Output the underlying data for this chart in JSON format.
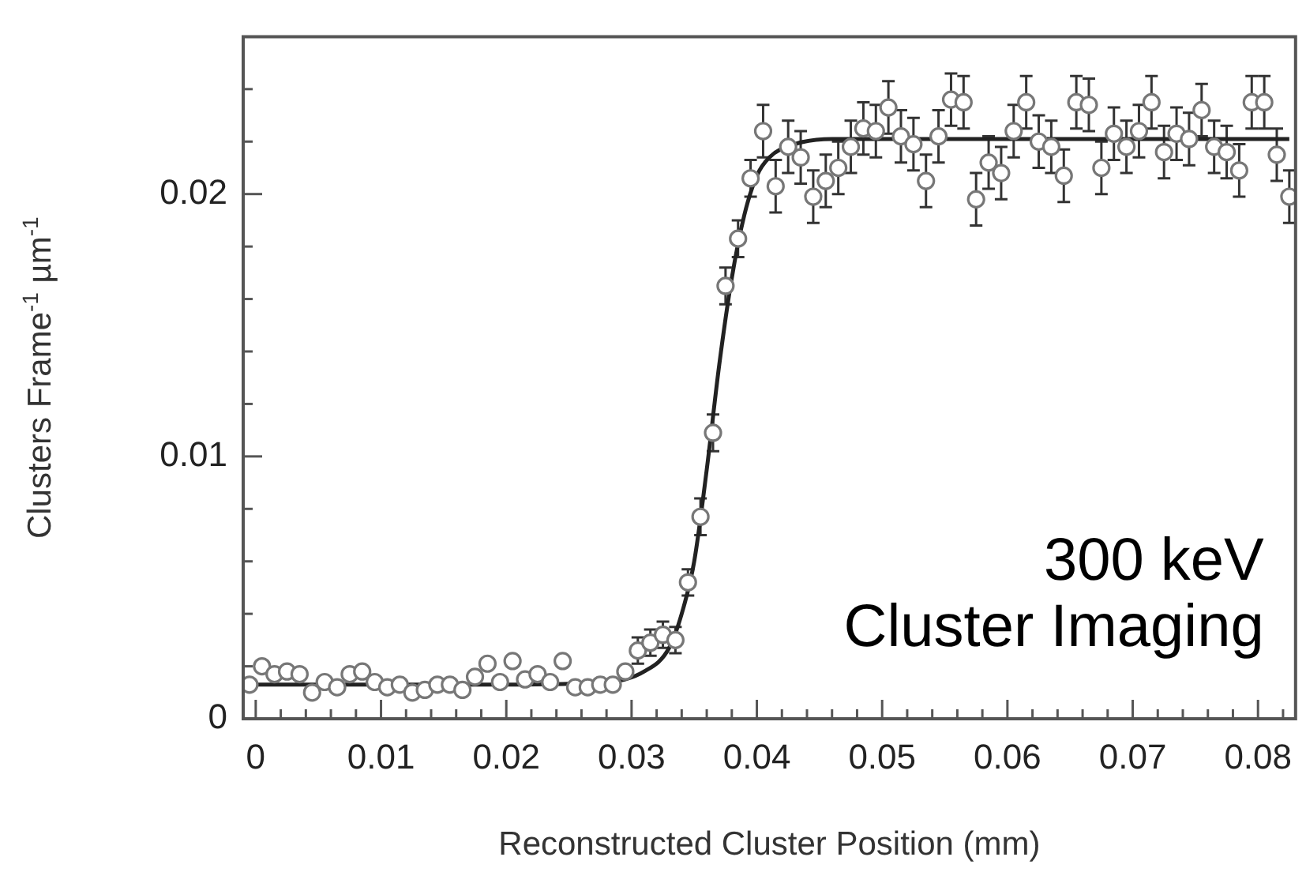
{
  "chart_data": {
    "type": "scatter",
    "xlabel": "Reconstructed Cluster Position (mm)",
    "ylabel": "Clusters Frame$^{-1}$ µm$^{-1}$",
    "annotations": [
      "300 keV",
      "Cluster Imaging"
    ],
    "xlim": [
      -0.001,
      0.083
    ],
    "ylim": [
      0,
      0.026
    ],
    "xticks": [
      0,
      {
        "value": 0.002,
        "label": null
      },
      {
        "value": 0.004,
        "label": null
      },
      {
        "value": 0.006,
        "label": null
      },
      {
        "value": 0.008,
        "label": null
      },
      0.01,
      {
        "value": 0.012,
        "label": null
      },
      {
        "value": 0.014,
        "label": null
      },
      {
        "value": 0.016,
        "label": null
      },
      {
        "value": 0.018,
        "label": null
      },
      0.02,
      {
        "value": 0.022,
        "label": null
      },
      {
        "value": 0.024,
        "label": null
      },
      {
        "value": 0.026,
        "label": null
      },
      {
        "value": 0.028,
        "label": null
      },
      0.03,
      {
        "value": 0.032,
        "label": null
      },
      {
        "value": 0.034,
        "label": null
      },
      {
        "value": 0.036,
        "label": null
      },
      {
        "value": 0.038,
        "label": null
      },
      0.04,
      {
        "value": 0.042,
        "label": null
      },
      {
        "value": 0.044,
        "label": null
      },
      {
        "value": 0.046,
        "label": null
      },
      {
        "value": 0.048,
        "label": null
      },
      0.05,
      {
        "value": 0.052,
        "label": null
      },
      {
        "value": 0.054,
        "label": null
      },
      {
        "value": 0.056,
        "label": null
      },
      {
        "value": 0.058,
        "label": null
      },
      0.06,
      {
        "value": 0.062,
        "label": null
      },
      {
        "value": 0.064,
        "label": null
      },
      {
        "value": 0.066,
        "label": null
      },
      {
        "value": 0.068,
        "label": null
      },
      0.07,
      {
        "value": 0.072,
        "label": null
      },
      {
        "value": 0.074,
        "label": null
      },
      {
        "value": 0.076,
        "label": null
      },
      {
        "value": 0.078,
        "label": null
      },
      0.08,
      {
        "value": 0.082,
        "label": null
      }
    ],
    "yticks": [
      0,
      {
        "value": 0.002,
        "label": null
      },
      {
        "value": 0.004,
        "label": null
      },
      {
        "value": 0.006,
        "label": null
      },
      {
        "value": 0.008,
        "label": null
      },
      0.01,
      {
        "value": 0.012,
        "label": null
      },
      {
        "value": 0.014,
        "label": null
      },
      {
        "value": 0.016,
        "label": null
      },
      {
        "value": 0.018,
        "label": null
      },
      0.02,
      {
        "value": 0.022,
        "label": null
      },
      {
        "value": 0.024,
        "label": null
      }
    ],
    "grid": false,
    "legend": false,
    "marker": "circle",
    "series": [
      {
        "type": "scatter",
        "color": "#777777",
        "x": [
          -0.0005,
          0.0005,
          0.0015,
          0.0025,
          0.0035,
          0.0045,
          0.0055,
          0.0065,
          0.0075,
          0.0085,
          0.0095,
          0.0105,
          0.0115,
          0.0125,
          0.0135,
          0.0145,
          0.0155,
          0.0165,
          0.0175,
          0.0185,
          0.0195,
          0.0205,
          0.0215,
          0.0225,
          0.0235,
          0.0245,
          0.0255,
          0.0265,
          0.0275,
          0.0285,
          0.0295,
          0.0305,
          0.0315,
          0.0325,
          0.0335,
          0.0345,
          0.0355,
          0.0365,
          0.0375,
          0.0385,
          0.0395,
          0.0405,
          0.0415,
          0.0425,
          0.0435,
          0.0445,
          0.0455,
          0.0465,
          0.0475,
          0.0485,
          0.0495,
          0.0505,
          0.0515,
          0.0525,
          0.0535,
          0.0545,
          0.0555,
          0.0565,
          0.0575,
          0.0585,
          0.0595,
          0.0605,
          0.0615,
          0.0625,
          0.0635,
          0.0645,
          0.0655,
          0.0665,
          0.0675,
          0.0685,
          0.0695,
          0.0705,
          0.0715,
          0.0725,
          0.0735,
          0.0745,
          0.0755,
          0.0765,
          0.0775,
          0.0785,
          0.0795,
          0.0805,
          0.0815,
          0.0825
        ],
        "values": [
          0.0013,
          0.002,
          0.0017,
          0.0018,
          0.0017,
          0.001,
          0.0014,
          0.0012,
          0.0017,
          0.0018,
          0.0014,
          0.0012,
          0.0013,
          0.001,
          0.0011,
          0.0013,
          0.0013,
          0.0011,
          0.0016,
          0.0021,
          0.0014,
          0.0022,
          0.0015,
          0.0017,
          0.0014,
          0.0022,
          0.0012,
          0.0012,
          0.0013,
          0.0013,
          0.0018,
          0.0026,
          0.0029,
          0.0032,
          0.003,
          0.0052,
          0.0077,
          0.0109,
          0.0165,
          0.0183,
          0.0206,
          0.0224,
          0.0203,
          0.0218,
          0.0214,
          0.0199,
          0.0205,
          0.021,
          0.0218,
          0.0225,
          0.0224,
          0.0233,
          0.0222,
          0.0219,
          0.0205,
          0.0222,
          0.0236,
          0.0235,
          0.0198,
          0.0212,
          0.0208,
          0.0224,
          0.0235,
          0.022,
          0.0218,
          0.0207,
          0.0235,
          0.0234,
          0.021,
          0.0223,
          0.0218,
          0.0224,
          0.0235,
          0.0216,
          0.0223,
          0.0221,
          0.0232,
          0.0218,
          0.0216,
          0.0209,
          0.0235,
          0.0235,
          0.0215,
          0.0199
        ],
        "errors": [
          null,
          null,
          null,
          null,
          null,
          null,
          null,
          null,
          null,
          null,
          null,
          null,
          null,
          null,
          null,
          null,
          null,
          null,
          null,
          null,
          null,
          null,
          null,
          null,
          null,
          null,
          null,
          null,
          null,
          null,
          null,
          0.0005,
          0.0005,
          0.0005,
          0.0005,
          0.0005,
          0.0007,
          0.0007,
          0.0007,
          0.0007,
          0.0007,
          0.001,
          0.001,
          0.001,
          0.001,
          0.001,
          0.001,
          0.001,
          0.001,
          0.001,
          0.001,
          0.001,
          0.001,
          0.001,
          0.001,
          0.001,
          0.001,
          0.001,
          0.001,
          0.001,
          0.001,
          0.001,
          0.001,
          0.001,
          0.001,
          0.001,
          0.001,
          0.001,
          0.001,
          0.001,
          0.001,
          0.001,
          0.001,
          0.001,
          0.001,
          0.001,
          0.001,
          0.001,
          0.001,
          0.001,
          0.001,
          0.001,
          0.001,
          0.001
        ]
      },
      {
        "type": "line",
        "color": "#222222",
        "marker": "none",
        "line_style": "solid",
        "x": [
          -0.0005,
          0.02,
          0.028,
          0.031,
          0.033,
          0.034,
          0.035,
          0.036,
          0.037,
          0.038,
          0.039,
          0.04,
          0.041,
          0.043,
          0.046,
          0.0825
        ],
        "values": [
          0.0013,
          0.0013,
          0.0014,
          0.0018,
          0.0027,
          0.004,
          0.006,
          0.0095,
          0.0135,
          0.0168,
          0.0192,
          0.0207,
          0.0214,
          0.0219,
          0.0221,
          0.0221
        ]
      }
    ]
  }
}
